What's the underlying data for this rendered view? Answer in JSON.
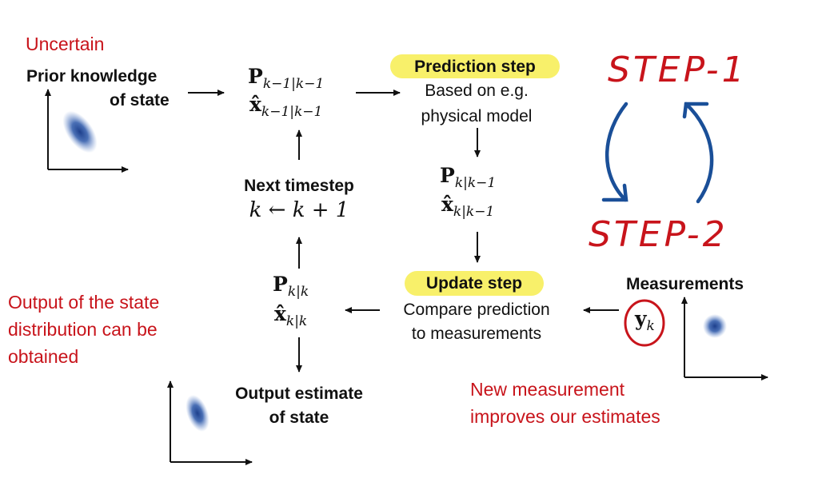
{
  "annotations": {
    "uncertain": "Uncertain",
    "output_note": [
      "Output of the state",
      "distribution can be",
      "obtained"
    ],
    "measurement_note": [
      "New measurement",
      "improves our estimates"
    ],
    "step1": "STEP-1",
    "step2": "STEP-2"
  },
  "prior": {
    "lines": [
      "Prior knowledge",
      "of state"
    ]
  },
  "prior_state": {
    "P": "P",
    "P_sub": "k−1|k−1",
    "x": "x̂",
    "x_sub": "k−1|k−1"
  },
  "prediction": {
    "title": "Prediction step",
    "lines": [
      "Based on e.g.",
      "physical model"
    ]
  },
  "predicted_state": {
    "P": "P",
    "P_sub": "k|k−1",
    "x": "x̂",
    "x_sub": "k|k−1"
  },
  "update": {
    "title": "Update step",
    "lines": [
      "Compare prediction",
      "to measurements"
    ]
  },
  "updated_state": {
    "P": "P",
    "P_sub": "k|k",
    "x": "x̂",
    "x_sub": "k|k"
  },
  "next": {
    "title": "Next timestep",
    "formula": "k ← k + 1"
  },
  "output": {
    "lines": [
      "Output estimate",
      "of state"
    ]
  },
  "measurements": {
    "title": "Measurements",
    "y": "y",
    "y_sub": "k"
  },
  "colors": {
    "annotation_red": "#c8141b",
    "arrow_blue": "#1a4f98",
    "highlight": "#f8f06a",
    "blob": "#1d3f8c"
  }
}
